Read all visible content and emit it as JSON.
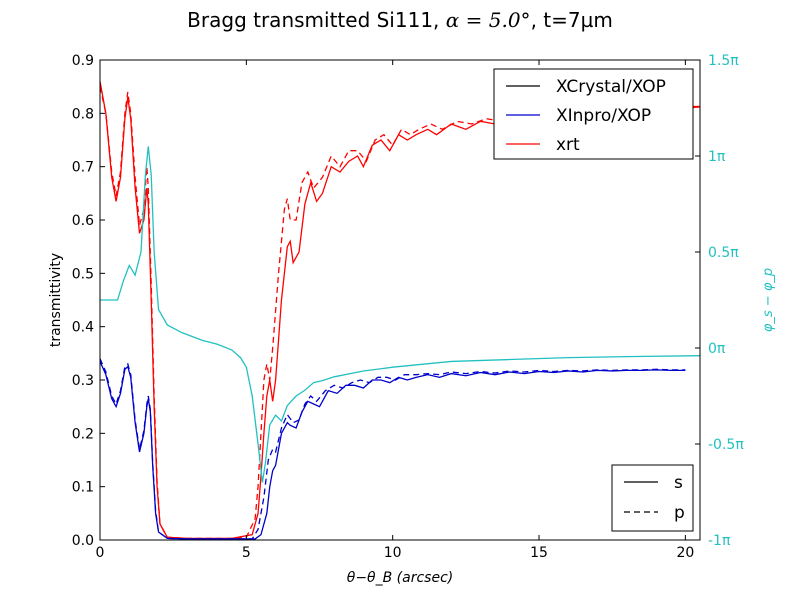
{
  "chart_data": {
    "type": "line",
    "title_parts": {
      "before": "Bragg transmitted Si111, ",
      "math": "α = 5.0°",
      "after": ", t=7µm"
    },
    "xlabel": "θ−θ_B  (arcsec)",
    "ylabel": "transmittivity",
    "y2label": "φ_s − φ_p",
    "xlim": [
      0,
      20.5
    ],
    "ylim": [
      0,
      0.9
    ],
    "y2lim": [
      -1,
      1.5
    ],
    "x_ticks": [
      "0",
      "5",
      "10",
      "15",
      "20"
    ],
    "y_ticks": [
      "0.0",
      "0.1",
      "0.2",
      "0.3",
      "0.4",
      "0.5",
      "0.6",
      "0.7",
      "0.8",
      "0.9"
    ],
    "y2_ticks": [
      "-1π",
      "-0.5π",
      "0π",
      "0.5π",
      "1π",
      "1.5π"
    ],
    "y2_tick_values": [
      -1,
      -0.5,
      0,
      0.5,
      1,
      1.5
    ],
    "legend_sources": [
      {
        "label": "XCrystal/XOP",
        "color": "#000000"
      },
      {
        "label": "XInpro/XOP",
        "color": "#0000cc"
      },
      {
        "label": "xrt",
        "color": "#ff0000"
      }
    ],
    "legend_pol": [
      {
        "label": "s",
        "dash": "solid"
      },
      {
        "label": "p",
        "dash": "dashed"
      }
    ],
    "legend_sources_placement": "top-right",
    "legend_pol_placement": "bottom-right",
    "colors": {
      "phase": "#22c0c0",
      "red": "#ff0000",
      "blue": "#0000cc",
      "black": "#000000"
    },
    "series": [
      {
        "name": "xrt s",
        "color": "#ff0000",
        "dash": "solid",
        "axis": "left",
        "points": [
          [
            0,
            0.86
          ],
          [
            0.2,
            0.8
          ],
          [
            0.4,
            0.68
          ],
          [
            0.55,
            0.635
          ],
          [
            0.7,
            0.68
          ],
          [
            0.85,
            0.79
          ],
          [
            0.95,
            0.83
          ],
          [
            1.05,
            0.79
          ],
          [
            1.2,
            0.66
          ],
          [
            1.35,
            0.575
          ],
          [
            1.5,
            0.6
          ],
          [
            1.6,
            0.66
          ],
          [
            1.65,
            0.63
          ],
          [
            1.75,
            0.45
          ],
          [
            1.85,
            0.25
          ],
          [
            1.95,
            0.1
          ],
          [
            2.05,
            0.03
          ],
          [
            2.3,
            0.005
          ],
          [
            3,
            0.003
          ],
          [
            4.5,
            0.003
          ],
          [
            5.2,
            0.01
          ],
          [
            5.4,
            0.05
          ],
          [
            5.5,
            0.12
          ],
          [
            5.6,
            0.2
          ],
          [
            5.7,
            0.27
          ],
          [
            5.8,
            0.3
          ],
          [
            5.9,
            0.26
          ],
          [
            6.0,
            0.3
          ],
          [
            6.2,
            0.45
          ],
          [
            6.4,
            0.55
          ],
          [
            6.5,
            0.56
          ],
          [
            6.6,
            0.52
          ],
          [
            6.8,
            0.54
          ],
          [
            7.0,
            0.63
          ],
          [
            7.2,
            0.67
          ],
          [
            7.4,
            0.635
          ],
          [
            7.6,
            0.65
          ],
          [
            7.9,
            0.7
          ],
          [
            8.2,
            0.69
          ],
          [
            8.5,
            0.71
          ],
          [
            8.8,
            0.72
          ],
          [
            9.0,
            0.7
          ],
          [
            9.3,
            0.74
          ],
          [
            9.6,
            0.75
          ],
          [
            9.9,
            0.73
          ],
          [
            10.2,
            0.76
          ],
          [
            10.5,
            0.75
          ],
          [
            10.8,
            0.76
          ],
          [
            11.2,
            0.77
          ],
          [
            11.5,
            0.76
          ],
          [
            12,
            0.78
          ],
          [
            12.5,
            0.77
          ],
          [
            13,
            0.785
          ],
          [
            13.5,
            0.78
          ],
          [
            14,
            0.79
          ],
          [
            14.5,
            0.785
          ],
          [
            15,
            0.795
          ],
          [
            15.5,
            0.79
          ],
          [
            16,
            0.8
          ],
          [
            16.5,
            0.795
          ],
          [
            17,
            0.8
          ],
          [
            17.5,
            0.8
          ],
          [
            18,
            0.805
          ],
          [
            18.5,
            0.805
          ],
          [
            19,
            0.81
          ],
          [
            19.5,
            0.81
          ],
          [
            20,
            0.81
          ],
          [
            20.5,
            0.812
          ]
        ]
      },
      {
        "name": "xrt p",
        "color": "#ff0000",
        "dash": "dashed",
        "axis": "left",
        "points": [
          [
            0,
            0.85
          ],
          [
            0.2,
            0.8
          ],
          [
            0.4,
            0.69
          ],
          [
            0.55,
            0.645
          ],
          [
            0.7,
            0.69
          ],
          [
            0.85,
            0.8
          ],
          [
            0.95,
            0.84
          ],
          [
            1.05,
            0.8
          ],
          [
            1.2,
            0.68
          ],
          [
            1.35,
            0.59
          ],
          [
            1.5,
            0.62
          ],
          [
            1.6,
            0.7
          ],
          [
            1.65,
            0.66
          ],
          [
            1.75,
            0.48
          ],
          [
            1.85,
            0.27
          ],
          [
            1.95,
            0.11
          ],
          [
            2.05,
            0.03
          ],
          [
            2.3,
            0.005
          ],
          [
            3,
            0.003
          ],
          [
            4.5,
            0.003
          ],
          [
            5.0,
            0.005
          ],
          [
            5.3,
            0.04
          ],
          [
            5.4,
            0.1
          ],
          [
            5.5,
            0.2
          ],
          [
            5.6,
            0.3
          ],
          [
            5.7,
            0.33
          ],
          [
            5.8,
            0.3
          ],
          [
            5.9,
            0.36
          ],
          [
            6.1,
            0.5
          ],
          [
            6.3,
            0.62
          ],
          [
            6.4,
            0.64
          ],
          [
            6.5,
            0.6
          ],
          [
            6.7,
            0.6
          ],
          [
            6.9,
            0.67
          ],
          [
            7.1,
            0.69
          ],
          [
            7.3,
            0.66
          ],
          [
            7.6,
            0.68
          ],
          [
            7.9,
            0.72
          ],
          [
            8.2,
            0.7
          ],
          [
            8.5,
            0.73
          ],
          [
            8.8,
            0.73
          ],
          [
            9.1,
            0.71
          ],
          [
            9.4,
            0.75
          ],
          [
            9.7,
            0.76
          ],
          [
            10,
            0.74
          ],
          [
            10.3,
            0.77
          ],
          [
            10.6,
            0.76
          ],
          [
            10.9,
            0.77
          ],
          [
            11.3,
            0.78
          ],
          [
            11.7,
            0.77
          ],
          [
            12.2,
            0.785
          ],
          [
            12.7,
            0.78
          ],
          [
            13.2,
            0.79
          ],
          [
            13.7,
            0.785
          ],
          [
            14.2,
            0.795
          ],
          [
            14.7,
            0.79
          ],
          [
            15.2,
            0.8
          ],
          [
            15.7,
            0.795
          ],
          [
            16.2,
            0.8
          ],
          [
            16.7,
            0.8
          ],
          [
            17.2,
            0.805
          ],
          [
            17.7,
            0.805
          ],
          [
            18.2,
            0.81
          ],
          [
            18.7,
            0.81
          ],
          [
            19.2,
            0.81
          ],
          [
            19.7,
            0.812
          ],
          [
            20.5,
            0.813
          ]
        ]
      },
      {
        "name": "XInpro/XOP s",
        "color": "#0000cc",
        "dash": "solid",
        "axis": "left",
        "points": [
          [
            0,
            0.335
          ],
          [
            0.2,
            0.31
          ],
          [
            0.4,
            0.265
          ],
          [
            0.55,
            0.25
          ],
          [
            0.7,
            0.275
          ],
          [
            0.85,
            0.32
          ],
          [
            0.95,
            0.325
          ],
          [
            1.05,
            0.305
          ],
          [
            1.2,
            0.22
          ],
          [
            1.35,
            0.165
          ],
          [
            1.5,
            0.2
          ],
          [
            1.6,
            0.25
          ],
          [
            1.65,
            0.265
          ],
          [
            1.72,
            0.24
          ],
          [
            1.8,
            0.14
          ],
          [
            1.9,
            0.05
          ],
          [
            2.0,
            0.015
          ],
          [
            2.3,
            0.003
          ],
          [
            3,
            0.002
          ],
          [
            5.3,
            0.002
          ],
          [
            5.5,
            0.01
          ],
          [
            5.7,
            0.05
          ],
          [
            5.8,
            0.1
          ],
          [
            5.9,
            0.13
          ],
          [
            6.0,
            0.14
          ],
          [
            6.2,
            0.2
          ],
          [
            6.4,
            0.22
          ],
          [
            6.5,
            0.215
          ],
          [
            6.7,
            0.21
          ],
          [
            6.9,
            0.24
          ],
          [
            7.1,
            0.26
          ],
          [
            7.3,
            0.255
          ],
          [
            7.5,
            0.25
          ],
          [
            7.8,
            0.28
          ],
          [
            8.1,
            0.275
          ],
          [
            8.4,
            0.29
          ],
          [
            8.7,
            0.29
          ],
          [
            9.0,
            0.285
          ],
          [
            9.3,
            0.3
          ],
          [
            9.6,
            0.3
          ],
          [
            9.9,
            0.295
          ],
          [
            10.2,
            0.305
          ],
          [
            10.5,
            0.3
          ],
          [
            10.8,
            0.305
          ],
          [
            11.2,
            0.31
          ],
          [
            11.6,
            0.305
          ],
          [
            12,
            0.312
          ],
          [
            12.5,
            0.308
          ],
          [
            13,
            0.314
          ],
          [
            13.5,
            0.31
          ],
          [
            14,
            0.315
          ],
          [
            14.5,
            0.312
          ],
          [
            15,
            0.316
          ],
          [
            15.5,
            0.314
          ],
          [
            16,
            0.317
          ],
          [
            16.5,
            0.315
          ],
          [
            17,
            0.318
          ],
          [
            17.5,
            0.317
          ],
          [
            18,
            0.318
          ],
          [
            18.5,
            0.318
          ],
          [
            19,
            0.319
          ],
          [
            19.5,
            0.318
          ],
          [
            20,
            0.318
          ]
        ]
      },
      {
        "name": "XInpro/XOP p",
        "color": "#0000cc",
        "dash": "dashed",
        "axis": "left",
        "points": [
          [
            0,
            0.34
          ],
          [
            0.2,
            0.315
          ],
          [
            0.4,
            0.27
          ],
          [
            0.55,
            0.255
          ],
          [
            0.7,
            0.28
          ],
          [
            0.85,
            0.325
          ],
          [
            0.95,
            0.33
          ],
          [
            1.05,
            0.31
          ],
          [
            1.2,
            0.225
          ],
          [
            1.35,
            0.17
          ],
          [
            1.5,
            0.205
          ],
          [
            1.6,
            0.255
          ],
          [
            1.65,
            0.27
          ],
          [
            1.72,
            0.245
          ],
          [
            1.8,
            0.145
          ],
          [
            1.9,
            0.055
          ],
          [
            2.0,
            0.015
          ],
          [
            2.3,
            0.003
          ],
          [
            3,
            0.002
          ],
          [
            5.2,
            0.002
          ],
          [
            5.4,
            0.02
          ],
          [
            5.6,
            0.08
          ],
          [
            5.75,
            0.15
          ],
          [
            5.9,
            0.17
          ],
          [
            6.0,
            0.165
          ],
          [
            6.2,
            0.21
          ],
          [
            6.4,
            0.235
          ],
          [
            6.6,
            0.22
          ],
          [
            6.8,
            0.225
          ],
          [
            7.0,
            0.255
          ],
          [
            7.2,
            0.27
          ],
          [
            7.4,
            0.26
          ],
          [
            7.7,
            0.28
          ],
          [
            8.0,
            0.29
          ],
          [
            8.3,
            0.285
          ],
          [
            8.6,
            0.295
          ],
          [
            8.9,
            0.3
          ],
          [
            9.2,
            0.295
          ],
          [
            9.5,
            0.305
          ],
          [
            9.8,
            0.305
          ],
          [
            10.1,
            0.3
          ],
          [
            10.4,
            0.31
          ],
          [
            10.8,
            0.31
          ],
          [
            11.2,
            0.312
          ],
          [
            11.6,
            0.31
          ],
          [
            12,
            0.315
          ],
          [
            12.5,
            0.312
          ],
          [
            13,
            0.316
          ],
          [
            13.5,
            0.313
          ],
          [
            14,
            0.317
          ],
          [
            14.5,
            0.315
          ],
          [
            15,
            0.318
          ],
          [
            15.5,
            0.316
          ],
          [
            16,
            0.318
          ],
          [
            16.5,
            0.317
          ],
          [
            17,
            0.319
          ],
          [
            17.5,
            0.318
          ],
          [
            18,
            0.319
          ],
          [
            18.5,
            0.319
          ],
          [
            19,
            0.32
          ],
          [
            19.5,
            0.319
          ],
          [
            20,
            0.319
          ]
        ]
      },
      {
        "name": "phase",
        "color": "#22c0c0",
        "dash": "solid",
        "axis": "right",
        "points": [
          [
            0,
            0.25
          ],
          [
            0.3,
            0.25
          ],
          [
            0.6,
            0.25
          ],
          [
            0.8,
            0.35
          ],
          [
            1.0,
            0.43
          ],
          [
            1.2,
            0.38
          ],
          [
            1.4,
            0.5
          ],
          [
            1.55,
            0.9
          ],
          [
            1.65,
            1.05
          ],
          [
            1.75,
            0.9
          ],
          [
            1.85,
            0.5
          ],
          [
            2.0,
            0.2
          ],
          [
            2.3,
            0.12
          ],
          [
            2.8,
            0.08
          ],
          [
            3.5,
            0.04
          ],
          [
            4.0,
            0.02
          ],
          [
            4.5,
            -0.01
          ],
          [
            4.8,
            -0.05
          ],
          [
            5.0,
            -0.1
          ],
          [
            5.2,
            -0.25
          ],
          [
            5.4,
            -0.5
          ],
          [
            5.55,
            -0.7
          ],
          [
            5.65,
            -0.6
          ],
          [
            5.8,
            -0.4
          ],
          [
            6.0,
            -0.35
          ],
          [
            6.2,
            -0.38
          ],
          [
            6.4,
            -0.3
          ],
          [
            6.7,
            -0.25
          ],
          [
            7.0,
            -0.22
          ],
          [
            7.3,
            -0.18
          ],
          [
            7.6,
            -0.17
          ],
          [
            8,
            -0.15
          ],
          [
            9,
            -0.12
          ],
          [
            10,
            -0.1
          ],
          [
            12,
            -0.07
          ],
          [
            14,
            -0.06
          ],
          [
            16,
            -0.05
          ],
          [
            18,
            -0.045
          ],
          [
            20.5,
            -0.04
          ]
        ]
      }
    ]
  }
}
